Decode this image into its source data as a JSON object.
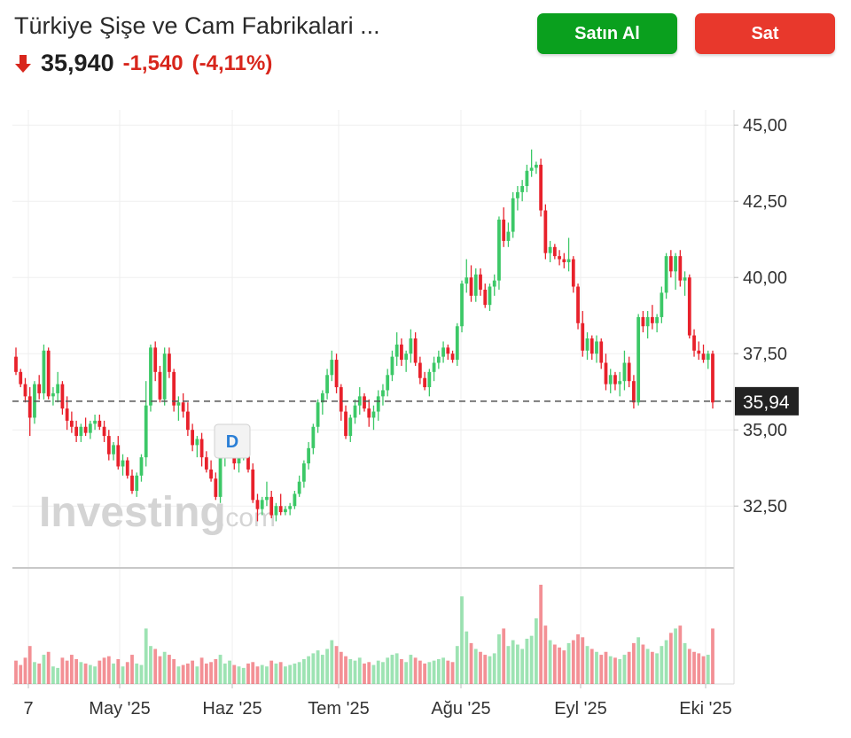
{
  "header": {
    "title": "Türkiye Şişe ve Cam Fabrikalari ...",
    "price": "35,940",
    "change": "-1,540",
    "change_pct": "(-4,11%)",
    "direction_icon": "arrow-down-icon",
    "buy_label": "Satın Al",
    "sell_label": "Sat"
  },
  "colors": {
    "up": "#3cc867",
    "down": "#e8212b",
    "buy": "#0aa01e",
    "sell": "#e8382c"
  },
  "watermark": {
    "text_main": "Investing",
    "text_suffix": ".com"
  },
  "marker": {
    "label": "D"
  },
  "chart_data": {
    "type": "candlestick",
    "y_ticks": [
      "45,00",
      "42,50",
      "40,00",
      "37,50",
      "35,00",
      "32,50"
    ],
    "y_tick_values": [
      45,
      42.5,
      40,
      37.5,
      35,
      32.5
    ],
    "x_labels": [
      "7",
      "May '25",
      "Haz '25",
      "Tem '25",
      "Ağu '25",
      "Eyl '25",
      "Eki '25"
    ],
    "current_price_label": "35,94",
    "current_price": 35.94,
    "ylim": [
      30.5,
      45.5
    ],
    "grid": true,
    "candles": [
      [
        37.4,
        37.7,
        36.8,
        36.9,
        16
      ],
      [
        36.9,
        37.0,
        36.4,
        36.5,
        13
      ],
      [
        36.5,
        36.7,
        35.9,
        36.1,
        18
      ],
      [
        36.1,
        36.4,
        34.8,
        35.4,
        26
      ],
      [
        35.4,
        36.6,
        35.2,
        36.5,
        15
      ],
      [
        36.5,
        36.8,
        36.0,
        36.2,
        14
      ],
      [
        36.2,
        37.8,
        36.0,
        37.6,
        20
      ],
      [
        37.6,
        37.7,
        36.0,
        36.1,
        22
      ],
      [
        36.1,
        36.4,
        35.8,
        36.2,
        12
      ],
      [
        36.2,
        36.9,
        35.9,
        36.5,
        11
      ],
      [
        36.5,
        36.6,
        35.5,
        35.7,
        18
      ],
      [
        35.7,
        36.1,
        35.0,
        35.3,
        16
      ],
      [
        35.3,
        35.6,
        34.9,
        35.1,
        20
      ],
      [
        35.1,
        35.3,
        34.6,
        34.8,
        17
      ],
      [
        34.8,
        35.2,
        34.6,
        35.1,
        15
      ],
      [
        35.1,
        35.4,
        34.8,
        34.9,
        14
      ],
      [
        34.9,
        35.3,
        34.7,
        35.2,
        13
      ],
      [
        35.2,
        35.5,
        35.0,
        35.3,
        12
      ],
      [
        35.3,
        35.5,
        35.0,
        35.1,
        16
      ],
      [
        35.1,
        35.3,
        34.6,
        34.8,
        18
      ],
      [
        34.8,
        35.0,
        34.0,
        34.2,
        19
      ],
      [
        34.2,
        34.6,
        34.0,
        34.5,
        14
      ],
      [
        34.5,
        34.8,
        33.7,
        33.8,
        17
      ],
      [
        33.8,
        34.2,
        33.5,
        34.0,
        12
      ],
      [
        34.0,
        34.1,
        33.4,
        33.5,
        15
      ],
      [
        33.5,
        33.7,
        32.9,
        33.0,
        20
      ],
      [
        33.0,
        33.6,
        32.8,
        33.5,
        14
      ],
      [
        33.5,
        34.2,
        33.3,
        34.1,
        13
      ],
      [
        34.1,
        36.6,
        33.8,
        35.8,
        38
      ],
      [
        35.8,
        37.8,
        35.6,
        37.7,
        26
      ],
      [
        37.7,
        37.9,
        36.6,
        36.9,
        24
      ],
      [
        36.9,
        37.1,
        35.9,
        36.0,
        19
      ],
      [
        36.0,
        37.7,
        35.8,
        37.5,
        22
      ],
      [
        37.5,
        37.7,
        36.7,
        36.9,
        20
      ],
      [
        36.9,
        37.0,
        35.6,
        35.8,
        17
      ],
      [
        35.8,
        36.1,
        35.3,
        35.9,
        12
      ],
      [
        35.9,
        36.2,
        35.4,
        35.6,
        13
      ],
      [
        35.6,
        35.9,
        34.8,
        35.0,
        14
      ],
      [
        35.0,
        35.2,
        34.3,
        34.5,
        16
      ],
      [
        34.5,
        34.8,
        34.1,
        34.7,
        12
      ],
      [
        34.7,
        34.9,
        33.8,
        34.1,
        18
      ],
      [
        34.1,
        34.3,
        33.6,
        33.7,
        14
      ],
      [
        33.7,
        34.0,
        33.3,
        33.4,
        15
      ],
      [
        33.4,
        33.6,
        32.7,
        32.8,
        17
      ],
      [
        32.8,
        34.2,
        32.6,
        34.1,
        20
      ],
      [
        34.1,
        34.6,
        33.8,
        34.5,
        14
      ],
      [
        34.5,
        34.8,
        34.2,
        34.6,
        16
      ],
      [
        34.6,
        34.7,
        33.7,
        33.9,
        13
      ],
      [
        33.9,
        34.3,
        33.6,
        34.2,
        12
      ],
      [
        34.2,
        34.5,
        34.0,
        34.4,
        11
      ],
      [
        34.4,
        34.5,
        33.6,
        33.7,
        14
      ],
      [
        33.7,
        33.9,
        32.6,
        32.7,
        15
      ],
      [
        32.7,
        32.9,
        32.0,
        32.4,
        12
      ],
      [
        32.4,
        32.8,
        32.2,
        32.7,
        13
      ],
      [
        32.7,
        33.3,
        32.5,
        32.8,
        12
      ],
      [
        32.8,
        33.0,
        32.1,
        32.2,
        16
      ],
      [
        32.2,
        32.6,
        32.0,
        32.5,
        14
      ],
      [
        32.5,
        32.9,
        32.2,
        32.3,
        15
      ],
      [
        32.3,
        32.5,
        32.2,
        32.4,
        12
      ],
      [
        32.4,
        32.6,
        32.2,
        32.5,
        13
      ],
      [
        32.5,
        33.0,
        32.4,
        32.9,
        14
      ],
      [
        32.9,
        33.5,
        32.8,
        33.3,
        15
      ],
      [
        33.3,
        34.0,
        33.1,
        33.9,
        17
      ],
      [
        33.9,
        34.6,
        33.7,
        34.4,
        19
      ],
      [
        34.4,
        35.2,
        34.2,
        35.1,
        21
      ],
      [
        35.1,
        36.0,
        34.9,
        35.9,
        23
      ],
      [
        35.9,
        36.3,
        35.5,
        36.2,
        20
      ],
      [
        36.2,
        37.0,
        36.0,
        36.8,
        24
      ],
      [
        36.8,
        37.6,
        36.6,
        37.3,
        30
      ],
      [
        37.3,
        37.5,
        36.2,
        36.4,
        26
      ],
      [
        36.4,
        36.5,
        35.3,
        35.6,
        22
      ],
      [
        35.6,
        35.8,
        34.7,
        34.8,
        19
      ],
      [
        34.8,
        35.5,
        34.6,
        35.4,
        17
      ],
      [
        35.4,
        36.0,
        35.2,
        35.8,
        16
      ],
      [
        35.8,
        36.4,
        35.5,
        36.1,
        18
      ],
      [
        36.1,
        36.2,
        35.6,
        35.7,
        14
      ],
      [
        35.7,
        36.0,
        35.1,
        35.4,
        15
      ],
      [
        35.4,
        35.8,
        35.0,
        35.6,
        13
      ],
      [
        35.6,
        36.3,
        35.3,
        36.1,
        16
      ],
      [
        36.1,
        36.5,
        35.8,
        36.3,
        15
      ],
      [
        36.3,
        37.0,
        36.1,
        36.8,
        18
      ],
      [
        36.8,
        37.6,
        36.6,
        37.4,
        20
      ],
      [
        37.4,
        38.2,
        37.1,
        37.8,
        21
      ],
      [
        37.8,
        38.0,
        37.1,
        37.3,
        17
      ],
      [
        37.3,
        37.6,
        36.9,
        37.5,
        15
      ],
      [
        37.5,
        38.3,
        37.2,
        38.0,
        20
      ],
      [
        38.0,
        38.2,
        37.1,
        37.2,
        18
      ],
      [
        37.2,
        37.4,
        36.5,
        36.7,
        16
      ],
      [
        36.7,
        36.9,
        36.3,
        36.4,
        14
      ],
      [
        36.4,
        37.0,
        36.1,
        36.9,
        15
      ],
      [
        36.9,
        37.4,
        36.6,
        37.2,
        16
      ],
      [
        37.2,
        37.6,
        37.0,
        37.4,
        17
      ],
      [
        37.4,
        37.9,
        37.2,
        37.7,
        18
      ],
      [
        37.7,
        37.8,
        37.3,
        37.5,
        16
      ],
      [
        37.5,
        37.6,
        37.2,
        37.3,
        15
      ],
      [
        37.3,
        38.5,
        37.1,
        38.4,
        26
      ],
      [
        38.4,
        39.9,
        38.2,
        39.8,
        60
      ],
      [
        39.8,
        40.6,
        39.5,
        40.0,
        36
      ],
      [
        40.0,
        40.4,
        39.2,
        39.4,
        28
      ],
      [
        39.4,
        40.3,
        39.2,
        40.1,
        24
      ],
      [
        40.1,
        40.3,
        39.4,
        39.6,
        22
      ],
      [
        39.6,
        39.8,
        39.0,
        39.1,
        20
      ],
      [
        39.1,
        39.8,
        38.9,
        39.7,
        19
      ],
      [
        39.7,
        40.1,
        39.4,
        39.9,
        21
      ],
      [
        39.9,
        42.0,
        39.6,
        41.9,
        34
      ],
      [
        41.9,
        42.3,
        41.0,
        41.2,
        38
      ],
      [
        41.2,
        41.8,
        41.0,
        41.5,
        26
      ],
      [
        41.5,
        42.8,
        41.3,
        42.6,
        30
      ],
      [
        42.6,
        43.0,
        42.2,
        42.8,
        27
      ],
      [
        42.8,
        43.2,
        42.5,
        43.0,
        24
      ],
      [
        43.0,
        43.7,
        42.8,
        43.5,
        31
      ],
      [
        43.5,
        44.2,
        43.3,
        43.6,
        33
      ],
      [
        43.6,
        43.8,
        43.4,
        43.7,
        45
      ],
      [
        43.7,
        43.9,
        42.0,
        42.2,
        68
      ],
      [
        42.2,
        42.4,
        40.6,
        40.8,
        40
      ],
      [
        40.8,
        41.2,
        40.5,
        41.0,
        30
      ],
      [
        41.0,
        41.1,
        40.6,
        40.7,
        27
      ],
      [
        40.7,
        40.9,
        40.4,
        40.6,
        25
      ],
      [
        40.6,
        40.8,
        40.3,
        40.5,
        23
      ],
      [
        40.5,
        41.3,
        40.2,
        40.6,
        28
      ],
      [
        40.6,
        40.7,
        39.5,
        39.7,
        30
      ],
      [
        39.7,
        39.8,
        38.3,
        38.5,
        34
      ],
      [
        38.5,
        38.9,
        37.4,
        37.6,
        32
      ],
      [
        37.6,
        38.2,
        37.3,
        38.0,
        26
      ],
      [
        38.0,
        38.1,
        37.3,
        37.5,
        24
      ],
      [
        37.5,
        38.1,
        37.2,
        37.9,
        22
      ],
      [
        37.9,
        38.0,
        37.0,
        37.2,
        20
      ],
      [
        37.2,
        37.5,
        36.3,
        36.5,
        22
      ],
      [
        36.5,
        37.0,
        36.2,
        36.8,
        19
      ],
      [
        36.8,
        36.9,
        36.3,
        36.5,
        18
      ],
      [
        36.5,
        36.9,
        36.1,
        36.6,
        17
      ],
      [
        36.6,
        37.6,
        36.3,
        37.2,
        20
      ],
      [
        37.2,
        37.4,
        36.4,
        36.6,
        22
      ],
      [
        36.6,
        36.8,
        35.7,
        35.9,
        28
      ],
      [
        35.9,
        38.8,
        35.8,
        38.7,
        32
      ],
      [
        38.7,
        38.9,
        38.2,
        38.4,
        27
      ],
      [
        38.4,
        38.9,
        38.0,
        38.7,
        24
      ],
      [
        38.7,
        39.1,
        38.3,
        38.5,
        22
      ],
      [
        38.5,
        38.8,
        38.2,
        38.7,
        21
      ],
      [
        38.7,
        39.7,
        38.5,
        39.5,
        26
      ],
      [
        39.5,
        40.8,
        39.3,
        40.7,
        30
      ],
      [
        40.7,
        40.9,
        40.0,
        40.2,
        35
      ],
      [
        40.2,
        40.8,
        39.6,
        40.7,
        38
      ],
      [
        40.7,
        40.9,
        39.7,
        39.9,
        40
      ],
      [
        39.9,
        40.2,
        39.4,
        40.0,
        28
      ],
      [
        40.0,
        40.1,
        38.0,
        38.1,
        24
      ],
      [
        38.1,
        38.3,
        37.4,
        37.6,
        22
      ],
      [
        37.6,
        37.9,
        37.3,
        37.5,
        21
      ],
      [
        37.5,
        37.8,
        37.2,
        37.3,
        19
      ],
      [
        37.3,
        37.6,
        37.0,
        37.5,
        20
      ],
      [
        37.5,
        37.6,
        35.7,
        35.9,
        38
      ]
    ]
  }
}
